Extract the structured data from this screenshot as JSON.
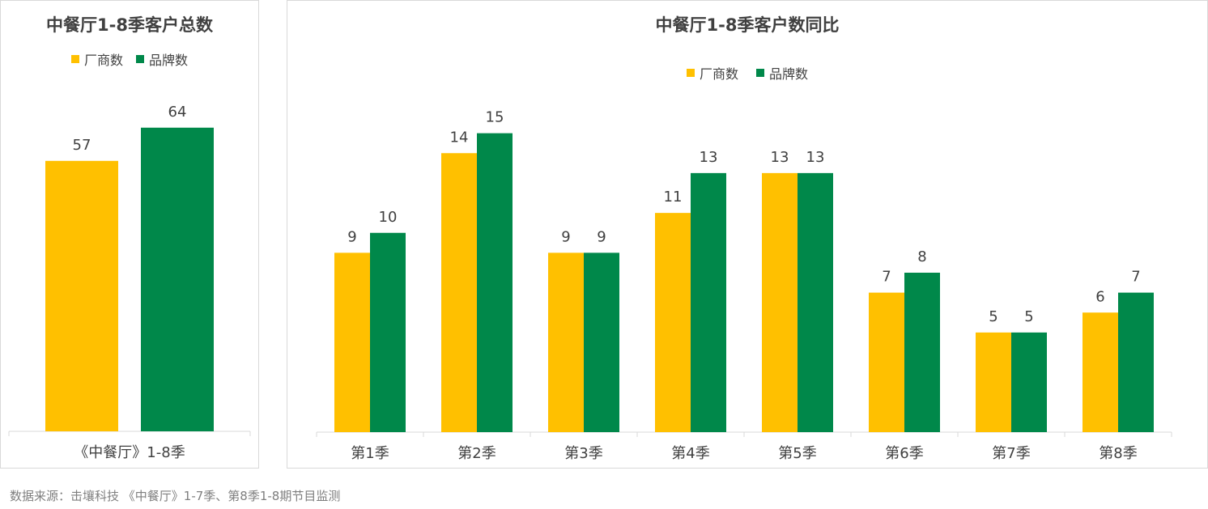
{
  "colors": {
    "manufacturers": "#FFC000",
    "brands": "#00884A",
    "axis": "#d9d9d9",
    "text": "#404040"
  },
  "legend": {
    "manufacturers": "厂商数",
    "brands": "品牌数"
  },
  "footnote": "数据来源：击壤科技 《中餐厅》1-7季、第8季1-8期节目监测",
  "chart_data": [
    {
      "type": "bar",
      "title": "中餐厅1-8季客户总数",
      "categories": [
        "《中餐厅》1-8季"
      ],
      "series": [
        {
          "name": "厂商数",
          "values": [
            57
          ]
        },
        {
          "name": "品牌数",
          "values": [
            64
          ]
        }
      ],
      "ylim": [
        0,
        73
      ],
      "grid": false,
      "legend_position": "top"
    },
    {
      "type": "bar",
      "title": "中餐厅1-8季客户数同比",
      "categories": [
        "第1季",
        "第2季",
        "第3季",
        "第4季",
        "第5季",
        "第6季",
        "第7季",
        "第8季"
      ],
      "series": [
        {
          "name": "厂商数",
          "values": [
            9,
            14,
            9,
            11,
            13,
            7,
            5,
            6
          ]
        },
        {
          "name": "品牌数",
          "values": [
            10,
            15,
            9,
            13,
            13,
            8,
            5,
            7
          ]
        }
      ],
      "ylim": [
        0,
        16
      ],
      "grid": false,
      "legend_position": "top"
    }
  ]
}
